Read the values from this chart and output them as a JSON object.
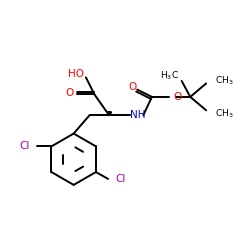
{
  "bg_color": "#ffffff",
  "atom_colors": {
    "O": "#ff0000",
    "N": "#0000cc",
    "Cl": "#aa00aa",
    "C": "#000000"
  },
  "bond_color": "#000000",
  "line_width": 1.4,
  "figsize": [
    2.5,
    2.5
  ],
  "dpi": 100
}
